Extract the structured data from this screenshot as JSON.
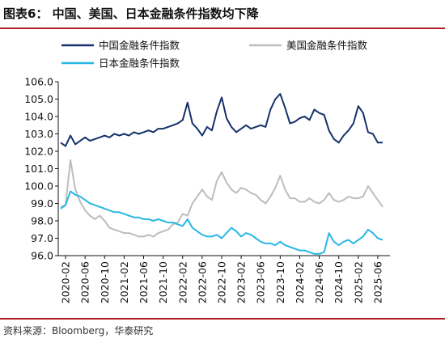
{
  "figure": {
    "title": "图表6：  中国、美国、日本金融条件指数均下降",
    "source": "资料来源：Bloomberg，华泰研究"
  },
  "colors": {
    "china": "#15316b",
    "us": "#bdbdbd",
    "japan": "#28b8e4",
    "rule": "#b01f24"
  },
  "chart_data": {
    "type": "line",
    "title": "",
    "xlabel": "",
    "ylabel": "",
    "ylim": [
      96.0,
      106.0
    ],
    "yticks": [
      "106.0",
      "105.0",
      "104.0",
      "103.0",
      "102.0",
      "101.0",
      "100.0",
      "99.0",
      "98.0",
      "97.0",
      "96.0"
    ],
    "xlim": [
      "2020-01",
      "2025-08"
    ],
    "xticks": [
      "2020-02",
      "2020-06",
      "2020-10",
      "2021-02",
      "2021-06",
      "2021-10",
      "2022-02",
      "2022-06",
      "2022-10",
      "2023-02",
      "2023-06",
      "2023-10",
      "2024-02",
      "2024-06",
      "2024-10",
      "2025-02",
      "2025-06"
    ],
    "legend": "top",
    "grid": false,
    "series": [
      {
        "name": "中国金融条件指数",
        "color": "#15316b",
        "points": [
          [
            "2020-01",
            102.5
          ],
          [
            "2020-02",
            102.3
          ],
          [
            "2020-03",
            102.9
          ],
          [
            "2020-04",
            102.4
          ],
          [
            "2020-05",
            102.6
          ],
          [
            "2020-06",
            102.8
          ],
          [
            "2020-07",
            102.6
          ],
          [
            "2020-08",
            102.7
          ],
          [
            "2020-09",
            102.8
          ],
          [
            "2020-10",
            102.9
          ],
          [
            "2020-11",
            102.8
          ],
          [
            "2020-12",
            103.0
          ],
          [
            "2021-01",
            102.9
          ],
          [
            "2021-02",
            103.0
          ],
          [
            "2021-03",
            102.9
          ],
          [
            "2021-04",
            103.1
          ],
          [
            "2021-05",
            103.0
          ],
          [
            "2021-06",
            103.1
          ],
          [
            "2021-07",
            103.2
          ],
          [
            "2021-08",
            103.1
          ],
          [
            "2021-09",
            103.3
          ],
          [
            "2021-10",
            103.3
          ],
          [
            "2021-11",
            103.4
          ],
          [
            "2021-12",
            103.5
          ],
          [
            "2022-01",
            103.6
          ],
          [
            "2022-02",
            103.8
          ],
          [
            "2022-03",
            104.8
          ],
          [
            "2022-04",
            103.6
          ],
          [
            "2022-05",
            103.3
          ],
          [
            "2022-06",
            102.9
          ],
          [
            "2022-07",
            103.4
          ],
          [
            "2022-08",
            103.2
          ],
          [
            "2022-09",
            104.3
          ],
          [
            "2022-10",
            105.1
          ],
          [
            "2022-11",
            103.9
          ],
          [
            "2022-12",
            103.4
          ],
          [
            "2023-01",
            103.1
          ],
          [
            "2023-02",
            103.3
          ],
          [
            "2023-03",
            103.5
          ],
          [
            "2023-04",
            103.3
          ],
          [
            "2023-05",
            103.4
          ],
          [
            "2023-06",
            103.5
          ],
          [
            "2023-07",
            103.4
          ],
          [
            "2023-08",
            104.4
          ],
          [
            "2023-09",
            105.0
          ],
          [
            "2023-10",
            105.3
          ],
          [
            "2023-11",
            104.5
          ],
          [
            "2023-12",
            103.6
          ],
          [
            "2024-01",
            103.7
          ],
          [
            "2024-02",
            103.9
          ],
          [
            "2024-03",
            104.0
          ],
          [
            "2024-04",
            103.8
          ],
          [
            "2024-05",
            104.4
          ],
          [
            "2024-06",
            104.2
          ],
          [
            "2024-07",
            104.1
          ],
          [
            "2024-08",
            103.2
          ],
          [
            "2024-09",
            102.7
          ],
          [
            "2024-10",
            102.5
          ],
          [
            "2024-11",
            102.9
          ],
          [
            "2024-12",
            103.2
          ],
          [
            "2025-01",
            103.6
          ],
          [
            "2025-02",
            104.6
          ],
          [
            "2025-03",
            104.2
          ],
          [
            "2025-04",
            103.1
          ],
          [
            "2025-05",
            103.0
          ],
          [
            "2025-06",
            102.5
          ],
          [
            "2025-07",
            102.5
          ]
        ]
      },
      {
        "name": "美国金融条件指数",
        "color": "#bdbdbd",
        "points": [
          [
            "2020-01",
            98.8
          ],
          [
            "2020-02",
            98.9
          ],
          [
            "2020-03",
            101.5
          ],
          [
            "2020-04",
            99.8
          ],
          [
            "2020-05",
            99.1
          ],
          [
            "2020-06",
            98.6
          ],
          [
            "2020-07",
            98.3
          ],
          [
            "2020-08",
            98.1
          ],
          [
            "2020-09",
            98.3
          ],
          [
            "2020-10",
            98.0
          ],
          [
            "2020-11",
            97.6
          ],
          [
            "2020-12",
            97.5
          ],
          [
            "2021-01",
            97.4
          ],
          [
            "2021-02",
            97.3
          ],
          [
            "2021-03",
            97.3
          ],
          [
            "2021-04",
            97.2
          ],
          [
            "2021-05",
            97.1
          ],
          [
            "2021-06",
            97.1
          ],
          [
            "2021-07",
            97.2
          ],
          [
            "2021-08",
            97.1
          ],
          [
            "2021-09",
            97.3
          ],
          [
            "2021-10",
            97.4
          ],
          [
            "2021-11",
            97.5
          ],
          [
            "2021-12",
            97.8
          ],
          [
            "2022-01",
            97.9
          ],
          [
            "2022-02",
            98.4
          ],
          [
            "2022-03",
            98.3
          ],
          [
            "2022-04",
            99.0
          ],
          [
            "2022-05",
            99.4
          ],
          [
            "2022-06",
            99.8
          ],
          [
            "2022-07",
            99.4
          ],
          [
            "2022-08",
            99.2
          ],
          [
            "2022-09",
            100.3
          ],
          [
            "2022-10",
            100.8
          ],
          [
            "2022-11",
            100.2
          ],
          [
            "2022-12",
            99.8
          ],
          [
            "2023-01",
            99.6
          ],
          [
            "2023-02",
            99.9
          ],
          [
            "2023-03",
            99.8
          ],
          [
            "2023-04",
            99.6
          ],
          [
            "2023-05",
            99.5
          ],
          [
            "2023-06",
            99.2
          ],
          [
            "2023-07",
            99.0
          ],
          [
            "2023-08",
            99.4
          ],
          [
            "2023-09",
            99.9
          ],
          [
            "2023-10",
            100.6
          ],
          [
            "2023-11",
            99.8
          ],
          [
            "2023-12",
            99.3
          ],
          [
            "2024-01",
            99.3
          ],
          [
            "2024-02",
            99.1
          ],
          [
            "2024-03",
            99.1
          ],
          [
            "2024-04",
            99.3
          ],
          [
            "2024-05",
            99.1
          ],
          [
            "2024-06",
            99.0
          ],
          [
            "2024-07",
            99.2
          ],
          [
            "2024-08",
            99.6
          ],
          [
            "2024-09",
            99.2
          ],
          [
            "2024-10",
            99.1
          ],
          [
            "2024-11",
            99.2
          ],
          [
            "2024-12",
            99.4
          ],
          [
            "2025-01",
            99.3
          ],
          [
            "2025-02",
            99.3
          ],
          [
            "2025-03",
            99.4
          ],
          [
            "2025-04",
            100.0
          ],
          [
            "2025-05",
            99.6
          ],
          [
            "2025-06",
            99.2
          ],
          [
            "2025-07",
            98.8
          ]
        ]
      },
      {
        "name": "日本金融条件指数",
        "color": "#28b8e4",
        "points": [
          [
            "2020-01",
            98.7
          ],
          [
            "2020-02",
            98.9
          ],
          [
            "2020-03",
            99.7
          ],
          [
            "2020-04",
            99.5
          ],
          [
            "2020-05",
            99.4
          ],
          [
            "2020-06",
            99.2
          ],
          [
            "2020-07",
            99.0
          ],
          [
            "2020-08",
            98.9
          ],
          [
            "2020-09",
            98.8
          ],
          [
            "2020-10",
            98.7
          ],
          [
            "2020-11",
            98.6
          ],
          [
            "2020-12",
            98.5
          ],
          [
            "2021-01",
            98.5
          ],
          [
            "2021-02",
            98.4
          ],
          [
            "2021-03",
            98.3
          ],
          [
            "2021-04",
            98.2
          ],
          [
            "2021-05",
            98.2
          ],
          [
            "2021-06",
            98.1
          ],
          [
            "2021-07",
            98.1
          ],
          [
            "2021-08",
            98.0
          ],
          [
            "2021-09",
            98.1
          ],
          [
            "2021-10",
            98.0
          ],
          [
            "2021-11",
            97.9
          ],
          [
            "2021-12",
            97.9
          ],
          [
            "2022-01",
            97.8
          ],
          [
            "2022-02",
            97.7
          ],
          [
            "2022-03",
            98.1
          ],
          [
            "2022-04",
            97.6
          ],
          [
            "2022-05",
            97.4
          ],
          [
            "2022-06",
            97.2
          ],
          [
            "2022-07",
            97.1
          ],
          [
            "2022-08",
            97.1
          ],
          [
            "2022-09",
            97.2
          ],
          [
            "2022-10",
            97.0
          ],
          [
            "2022-11",
            97.3
          ],
          [
            "2022-12",
            97.6
          ],
          [
            "2023-01",
            97.4
          ],
          [
            "2023-02",
            97.1
          ],
          [
            "2023-03",
            97.3
          ],
          [
            "2023-04",
            97.2
          ],
          [
            "2023-05",
            97.0
          ],
          [
            "2023-06",
            96.8
          ],
          [
            "2023-07",
            96.7
          ],
          [
            "2023-08",
            96.7
          ],
          [
            "2023-09",
            96.6
          ],
          [
            "2023-10",
            96.8
          ],
          [
            "2023-11",
            96.6
          ],
          [
            "2023-12",
            96.5
          ],
          [
            "2024-01",
            96.4
          ],
          [
            "2024-02",
            96.3
          ],
          [
            "2024-03",
            96.3
          ],
          [
            "2024-04",
            96.2
          ],
          [
            "2024-05",
            96.1
          ],
          [
            "2024-06",
            96.1
          ],
          [
            "2024-07",
            96.2
          ],
          [
            "2024-08",
            97.3
          ],
          [
            "2024-09",
            96.8
          ],
          [
            "2024-10",
            96.6
          ],
          [
            "2024-11",
            96.8
          ],
          [
            "2024-12",
            96.9
          ],
          [
            "2025-01",
            96.7
          ],
          [
            "2025-02",
            96.9
          ],
          [
            "2025-03",
            97.1
          ],
          [
            "2025-04",
            97.5
          ],
          [
            "2025-05",
            97.3
          ],
          [
            "2025-06",
            97.0
          ],
          [
            "2025-07",
            96.9
          ]
        ]
      }
    ]
  }
}
